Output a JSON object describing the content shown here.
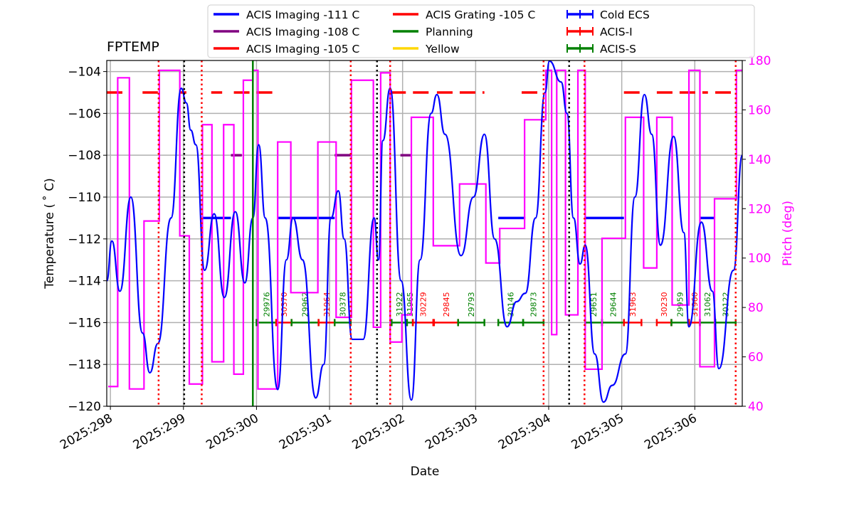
{
  "chart_data": {
    "type": "line",
    "title": "FPTEMP",
    "xlabel": "Date",
    "ylabel": "Temperature ($^\\circ$C)",
    "ylabel_display": "Temperature ( ˚ C)",
    "y2label": "Pitch (deg)",
    "xlim": [
      297.95,
      306.65
    ],
    "ylim": [
      -120,
      -103.47
    ],
    "y2lim": [
      40,
      180
    ],
    "grid": true,
    "legend_placement": "top-center-outside",
    "xticks": [
      298,
      299,
      300,
      301,
      302,
      303,
      304,
      305,
      306
    ],
    "xtick_labels": [
      "2025:298",
      "2025:299",
      "2025:300",
      "2025:301",
      "2025:302",
      "2025:303",
      "2025:304",
      "2025:305",
      "2025:306"
    ],
    "yticks": [
      -120,
      -118,
      -116,
      -114,
      -112,
      -110,
      -108,
      -106,
      -104
    ],
    "y2ticks": [
      40,
      60,
      80,
      100,
      120,
      140,
      160,
      180
    ],
    "legend": [
      {
        "label": "ACIS Imaging -111 C",
        "color": "#0000ff",
        "style": "line"
      },
      {
        "label": "ACIS Imaging -108 C",
        "color": "#800080",
        "style": "line"
      },
      {
        "label": "ACIS Imaging -105 C",
        "color": "#ff0000",
        "style": "line"
      },
      {
        "label": "ACIS Grating -105 C",
        "color": "#ff0000",
        "style": "line"
      },
      {
        "label": "Planning",
        "color": "#008000",
        "style": "line"
      },
      {
        "label": "Yellow",
        "color": "#ffd700",
        "style": "line"
      },
      {
        "label": "Cold ECS",
        "color": "#0000ff",
        "style": "errorbar"
      },
      {
        "label": "ACIS-I",
        "color": "#ff0000",
        "style": "errorbar"
      },
      {
        "label": "ACIS-S",
        "color": "#008000",
        "style": "errorbar"
      }
    ],
    "temperature": {
      "color": "#0000ff",
      "x": [
        297.95,
        298.02,
        298.13,
        298.28,
        298.44,
        298.54,
        298.65,
        298.83,
        298.97,
        299.04,
        299.1,
        299.17,
        299.29,
        299.42,
        299.56,
        299.71,
        299.84,
        299.95,
        300.03,
        300.12,
        300.29,
        300.41,
        300.5,
        300.63,
        300.81,
        300.92,
        301.02,
        301.12,
        301.2,
        301.31,
        301.46,
        301.61,
        301.67,
        301.73,
        301.83,
        301.98,
        302.12,
        302.24,
        302.39,
        302.47,
        302.58,
        302.8,
        302.97,
        303.12,
        303.26,
        303.43,
        303.56,
        303.68,
        303.82,
        303.95,
        304.01,
        304.17,
        304.25,
        304.34,
        304.43,
        304.5,
        304.63,
        304.75,
        304.87,
        305.05,
        305.18,
        305.31,
        305.41,
        305.53,
        305.71,
        305.85,
        305.92,
        306.09,
        306.24,
        306.33,
        306.53,
        306.65
      ],
      "y": [
        -114,
        -112.1,
        -114.5,
        -110,
        -116.5,
        -118.4,
        -117,
        -111,
        -104.8,
        -105.5,
        -106.8,
        -107.5,
        -113.5,
        -110.8,
        -114.8,
        -110.7,
        -114.1,
        -111,
        -107.5,
        -111,
        -119.2,
        -113,
        -111,
        -113,
        -119.6,
        -118,
        -111,
        -109.7,
        -112,
        -116.8,
        -116.8,
        -111,
        -113,
        -107.3,
        -104.8,
        -114,
        -119.7,
        -113,
        -106,
        -105.1,
        -107,
        -112.8,
        -110,
        -107,
        -112,
        -116.2,
        -115,
        -114.6,
        -111,
        -105,
        -103.5,
        -104.5,
        -106,
        -111,
        -113.2,
        -112.3,
        -117.5,
        -119.8,
        -119,
        -117.5,
        -110,
        -105.1,
        -107,
        -112.3,
        -107.1,
        -111.7,
        -116.2,
        -111.2,
        -114.5,
        -118.2,
        -113.5,
        -108
      ]
    },
    "pitch": {
      "color": "#ff00ff",
      "steps": [
        [
          297.97,
          48
        ],
        [
          298.1,
          173
        ],
        [
          298.26,
          47
        ],
        [
          298.46,
          115
        ],
        [
          298.67,
          176
        ],
        [
          298.95,
          109
        ],
        [
          299.08,
          49
        ],
        [
          299.26,
          154
        ],
        [
          299.39,
          58
        ],
        [
          299.55,
          154
        ],
        [
          299.69,
          53
        ],
        [
          299.82,
          172
        ],
        [
          299.95,
          176
        ],
        [
          300.02,
          47
        ],
        [
          300.29,
          147
        ],
        [
          300.47,
          86
        ],
        [
          300.84,
          147
        ],
        [
          301.09,
          76
        ],
        [
          301.3,
          172
        ],
        [
          301.6,
          72
        ],
        [
          301.7,
          175
        ],
        [
          301.83,
          66
        ],
        [
          301.99,
          77
        ],
        [
          302.12,
          157
        ],
        [
          302.42,
          105
        ],
        [
          302.78,
          130
        ],
        [
          303.14,
          98
        ],
        [
          303.33,
          112
        ],
        [
          303.67,
          156
        ],
        [
          303.96,
          176
        ],
        [
          304.04,
          69
        ],
        [
          304.11,
          176
        ],
        [
          304.23,
          77
        ],
        [
          304.4,
          176
        ],
        [
          304.5,
          55
        ],
        [
          304.73,
          108
        ],
        [
          305.05,
          157
        ],
        [
          305.3,
          96
        ],
        [
          305.48,
          157
        ],
        [
          305.69,
          81
        ],
        [
          305.92,
          176
        ],
        [
          306.07,
          56
        ],
        [
          306.27,
          124
        ],
        [
          306.57,
          176
        ]
      ],
      "end": 306.65
    },
    "limit_segments": [
      {
        "level": -105,
        "color": "#ff0000",
        "ranges": [
          [
            297.95,
            298.24
          ],
          [
            298.44,
            298.65
          ],
          [
            298.95,
            299.04
          ],
          [
            299.38,
            299.53
          ],
          [
            299.69,
            300.29
          ],
          [
            301.83,
            302.45
          ],
          [
            302.47,
            303.12
          ],
          [
            303.63,
            303.88
          ],
          [
            305.03,
            305.32
          ],
          [
            305.48,
            306.18
          ],
          [
            306.28,
            306.56
          ]
        ]
      },
      {
        "level": -108,
        "color": "#800080",
        "ranges": [
          [
            299.65,
            299.8
          ],
          [
            301.07,
            301.29
          ],
          [
            301.97,
            302.12
          ]
        ]
      },
      {
        "level": -111,
        "color": "#0000ff",
        "ranges": [
          [
            299.25,
            299.65
          ],
          [
            300.29,
            301.07
          ],
          [
            303.31,
            303.68
          ],
          [
            304.5,
            305.03
          ],
          [
            306.07,
            306.28
          ]
        ]
      }
    ],
    "vlines": [
      {
        "x": 298.66,
        "color": "#ff0000",
        "style": "dotted"
      },
      {
        "x": 299.25,
        "color": "#ff0000",
        "style": "dotted"
      },
      {
        "x": 301.29,
        "color": "#ff0000",
        "style": "dotted"
      },
      {
        "x": 301.83,
        "color": "#ff0000",
        "style": "dotted"
      },
      {
        "x": 303.93,
        "color": "#ff0000",
        "style": "dotted"
      },
      {
        "x": 304.49,
        "color": "#ff0000",
        "style": "dotted"
      },
      {
        "x": 306.56,
        "color": "#ff0000",
        "style": "dotted"
      },
      {
        "x": 299.01,
        "color": "#000000",
        "style": "dotted"
      },
      {
        "x": 301.65,
        "color": "#000000",
        "style": "dotted"
      },
      {
        "x": 304.28,
        "color": "#000000",
        "style": "dotted"
      },
      {
        "x": 299.95,
        "color": "#008000",
        "style": "solid"
      }
    ],
    "obsids": [
      {
        "id": "29976",
        "inst": "ACIS-S",
        "start": 300.0,
        "end": 300.27
      },
      {
        "id": "30370",
        "inst": "ACIS-I",
        "start": 300.27,
        "end": 300.48
      },
      {
        "id": "29962",
        "inst": "ACIS-S",
        "start": 300.48,
        "end": 300.85
      },
      {
        "id": "31964",
        "inst": "ACIS-I",
        "start": 300.85,
        "end": 301.07
      },
      {
        "id": "30378",
        "inst": "ACIS-S",
        "start": 301.07,
        "end": 301.29
      },
      {
        "id": "31922",
        "inst": "ACIS-S",
        "start": 301.85,
        "end": 302.06
      },
      {
        "id": "31965",
        "inst": "ACIS-S",
        "start": 302.06,
        "end": 302.14
      },
      {
        "id": "30229",
        "inst": "ACIS-I",
        "start": 302.14,
        "end": 302.42
      },
      {
        "id": "29845",
        "inst": "ACIS-I",
        "start": 302.43,
        "end": 302.76
      },
      {
        "id": "29793",
        "inst": "ACIS-S",
        "start": 302.76,
        "end": 303.12
      },
      {
        "id": "30146",
        "inst": "ACIS-S",
        "start": 303.31,
        "end": 303.65
      },
      {
        "id": "29873",
        "inst": "ACIS-S",
        "start": 303.65,
        "end": 303.93
      },
      {
        "id": "29651",
        "inst": "ACIS-S",
        "start": 304.5,
        "end": 304.73
      },
      {
        "id": "29644",
        "inst": "ACIS-S",
        "start": 304.73,
        "end": 305.03
      },
      {
        "id": "31963",
        "inst": "ACIS-I",
        "start": 305.03,
        "end": 305.27
      },
      {
        "id": "30230",
        "inst": "ACIS-I",
        "start": 305.48,
        "end": 305.68
      },
      {
        "id": "29959",
        "inst": "ACIS-S",
        "start": 305.68,
        "end": 305.92
      },
      {
        "id": "31960",
        "inst": "ACIS-I",
        "start": 305.92,
        "end": 306.07
      },
      {
        "id": "31062",
        "inst": "ACIS-S",
        "start": 306.07,
        "end": 306.28
      },
      {
        "id": "30122",
        "inst": "ACIS-S",
        "start": 306.28,
        "end": 306.56
      }
    ],
    "obsid_level": -116,
    "inst_colors": {
      "ACIS-I": "#ff0000",
      "ACIS-S": "#008000"
    }
  }
}
